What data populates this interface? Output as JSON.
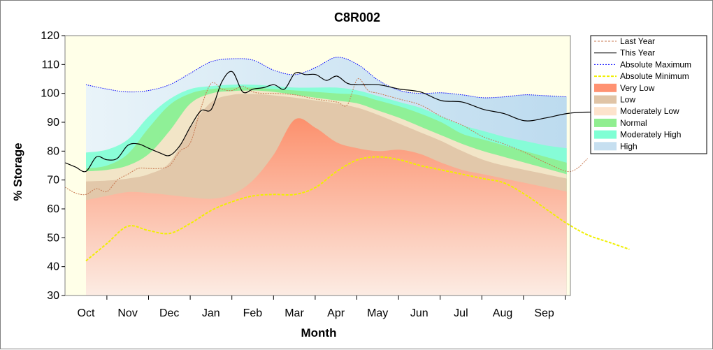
{
  "chart_data": {
    "type": "area",
    "title": "C8R002",
    "xlabel": "Month",
    "ylabel": "% Storage",
    "ylim": [
      30,
      120
    ],
    "yticks": [
      30,
      40,
      50,
      60,
      70,
      80,
      90,
      100,
      110,
      120
    ],
    "months": [
      "Oct",
      "Nov",
      "Dec",
      "Jan",
      "Feb",
      "Mar",
      "Apr",
      "May",
      "Jun",
      "Jul",
      "Aug",
      "Sep"
    ],
    "legend_position": "right",
    "bands": [
      {
        "name": "High",
        "color": "#c6dff0",
        "lower_series": "Moderately High",
        "upper": [
          [
            1,
            103
          ],
          [
            2,
            101.5
          ],
          [
            3,
            100.5
          ],
          [
            4,
            101
          ],
          [
            5,
            103
          ],
          [
            6,
            107
          ],
          [
            7,
            111
          ],
          [
            8,
            112
          ],
          [
            9,
            111.5
          ],
          [
            10,
            108
          ],
          [
            11,
            106.5
          ],
          [
            12,
            109
          ],
          [
            13,
            112.5
          ],
          [
            14,
            110
          ],
          [
            15,
            104.5
          ],
          [
            16,
            101
          ],
          [
            17,
            100
          ],
          [
            18,
            100.2
          ],
          [
            19,
            99.5
          ],
          [
            20,
            98.5
          ],
          [
            21,
            98.8
          ],
          [
            22,
            99.5
          ],
          [
            23,
            99.2
          ],
          [
            24,
            98.8
          ]
        ]
      },
      {
        "name": "Moderately High",
        "color": "#7fffd4",
        "points": [
          [
            1,
            79.5
          ],
          [
            2,
            80.5
          ],
          [
            3,
            84
          ],
          [
            4,
            92
          ],
          [
            5,
            98
          ],
          [
            6,
            101.5
          ],
          [
            7,
            102.5
          ],
          [
            8,
            103
          ],
          [
            9,
            103
          ],
          [
            10,
            102.5
          ],
          [
            11,
            102
          ],
          [
            12,
            102
          ],
          [
            13,
            102
          ],
          [
            14,
            101
          ],
          [
            15,
            99
          ],
          [
            16,
            97
          ],
          [
            17,
            95
          ],
          [
            18,
            92
          ],
          [
            19,
            89
          ],
          [
            20,
            87
          ],
          [
            21,
            85
          ],
          [
            22,
            83.5
          ],
          [
            23,
            82
          ],
          [
            24,
            81
          ]
        ]
      },
      {
        "name": "Normal",
        "color": "#90ee90",
        "points": [
          [
            1,
            74
          ],
          [
            2,
            75
          ],
          [
            3,
            79
          ],
          [
            4,
            88
          ],
          [
            5,
            96
          ],
          [
            6,
            100
          ],
          [
            7,
            101.5
          ],
          [
            8,
            102
          ],
          [
            9,
            102
          ],
          [
            10,
            101.5
          ],
          [
            11,
            101
          ],
          [
            12,
            100.5
          ],
          [
            13,
            100
          ],
          [
            14,
            99.5
          ],
          [
            15,
            97.5
          ],
          [
            16,
            95.5
          ],
          [
            17,
            93
          ],
          [
            18,
            90
          ],
          [
            19,
            86
          ],
          [
            20,
            84
          ],
          [
            21,
            82
          ],
          [
            22,
            80
          ],
          [
            23,
            78
          ],
          [
            24,
            76
          ]
        ]
      },
      {
        "name": "Moderately Low",
        "color": "#fde3cc",
        "points": [
          [
            1,
            73
          ],
          [
            2,
            73.5
          ],
          [
            3,
            75
          ],
          [
            4,
            79
          ],
          [
            5,
            87
          ],
          [
            6,
            96.5
          ],
          [
            7,
            100
          ],
          [
            8,
            100.8
          ],
          [
            9,
            101
          ],
          [
            10,
            100.5
          ],
          [
            11,
            99.5
          ],
          [
            12,
            98.5
          ],
          [
            13,
            97.5
          ],
          [
            14,
            96.5
          ],
          [
            15,
            94
          ],
          [
            16,
            91.5
          ],
          [
            17,
            88.5
          ],
          [
            18,
            85.5
          ],
          [
            19,
            82.5
          ],
          [
            20,
            80
          ],
          [
            21,
            78
          ],
          [
            22,
            76
          ],
          [
            23,
            74
          ],
          [
            24,
            72
          ]
        ]
      },
      {
        "name": "Low",
        "color": "#e0c4a6",
        "points": [
          [
            1,
            69.5
          ],
          [
            2,
            69.8
          ],
          [
            3,
            70.5
          ],
          [
            4,
            72
          ],
          [
            5,
            76
          ],
          [
            6,
            88
          ],
          [
            7,
            97
          ],
          [
            8,
            99.5
          ],
          [
            9,
            99.8
          ],
          [
            10,
            99.3
          ],
          [
            11,
            98.5
          ],
          [
            12,
            97.5
          ],
          [
            13,
            96.5
          ],
          [
            14,
            95
          ],
          [
            15,
            92.5
          ],
          [
            16,
            89.5
          ],
          [
            17,
            86.5
          ],
          [
            18,
            83.5
          ],
          [
            19,
            80
          ],
          [
            20,
            77
          ],
          [
            21,
            75
          ],
          [
            22,
            73.5
          ],
          [
            23,
            72
          ],
          [
            24,
            70.5
          ]
        ]
      },
      {
        "name": "Very Low",
        "color": "#ff9272",
        "points": [
          [
            1,
            63
          ],
          [
            2,
            64.5
          ],
          [
            3,
            65.8
          ],
          [
            4,
            65.5
          ],
          [
            5,
            64.8
          ],
          [
            6,
            64
          ],
          [
            7,
            63.5
          ],
          [
            8,
            65
          ],
          [
            9,
            70
          ],
          [
            10,
            79
          ],
          [
            11,
            91
          ],
          [
            12,
            88
          ],
          [
            13,
            83
          ],
          [
            14,
            81
          ],
          [
            15,
            80
          ],
          [
            16,
            80.5
          ],
          [
            17,
            79
          ],
          [
            18,
            76
          ],
          [
            19,
            73.5
          ],
          [
            20,
            72
          ],
          [
            21,
            70.5
          ],
          [
            22,
            69
          ],
          [
            23,
            67.5
          ],
          [
            24,
            66
          ]
        ]
      }
    ],
    "series": [
      {
        "name": "Last Year",
        "color": "#c87850",
        "style": "dotted",
        "points": [
          [
            0,
            67.5
          ],
          [
            0.5,
            65.5
          ],
          [
            1,
            65
          ],
          [
            1.5,
            67
          ],
          [
            2,
            66
          ],
          [
            2.5,
            70
          ],
          [
            3,
            72
          ],
          [
            3.5,
            74
          ],
          [
            4,
            74
          ],
          [
            4.5,
            74
          ],
          [
            5,
            75
          ],
          [
            5.5,
            80
          ],
          [
            6,
            83
          ],
          [
            6.5,
            95
          ],
          [
            7,
            103.5
          ],
          [
            7.5,
            101.5
          ],
          [
            8,
            101
          ],
          [
            8.5,
            102.5
          ],
          [
            9,
            100.5
          ],
          [
            9.5,
            100
          ],
          [
            10,
            100
          ],
          [
            11,
            99.5
          ],
          [
            12,
            98
          ],
          [
            13,
            97
          ],
          [
            13.5,
            96
          ],
          [
            14,
            105
          ],
          [
            14.5,
            101
          ],
          [
            15,
            100
          ],
          [
            16,
            98
          ],
          [
            17,
            96
          ],
          [
            18,
            92
          ],
          [
            19,
            89
          ],
          [
            20,
            85
          ],
          [
            21,
            82.5
          ],
          [
            22,
            79.5
          ],
          [
            23,
            76
          ],
          [
            24,
            73
          ],
          [
            24.5,
            74
          ],
          [
            25,
            77.5
          ]
        ]
      },
      {
        "name": "This Year",
        "color": "#000000",
        "style": "solid",
        "points": [
          [
            0,
            76
          ],
          [
            0.5,
            74.5
          ],
          [
            1,
            73
          ],
          [
            1.5,
            78
          ],
          [
            2,
            77
          ],
          [
            2.5,
            77.5
          ],
          [
            3,
            82
          ],
          [
            3.5,
            82.5
          ],
          [
            4,
            81
          ],
          [
            4.5,
            79.5
          ],
          [
            5,
            78.5
          ],
          [
            5.5,
            82
          ],
          [
            6,
            88.5
          ],
          [
            6.5,
            94
          ],
          [
            7,
            94.5
          ],
          [
            7.5,
            104
          ],
          [
            8,
            107.5
          ],
          [
            8.5,
            100.5
          ],
          [
            9,
            101.5
          ],
          [
            9.5,
            102
          ],
          [
            10,
            103
          ],
          [
            10.5,
            101.5
          ],
          [
            11,
            107
          ],
          [
            11.5,
            106.5
          ],
          [
            12,
            106.5
          ],
          [
            12.5,
            104.5
          ],
          [
            13,
            106
          ],
          [
            13.5,
            103.5
          ],
          [
            14,
            103
          ],
          [
            15,
            103
          ],
          [
            16,
            101.5
          ],
          [
            17,
            100.5
          ],
          [
            18,
            97.5
          ],
          [
            19,
            97
          ],
          [
            20,
            94.5
          ],
          [
            21,
            93
          ],
          [
            22,
            90.5
          ],
          [
            23,
            91.5
          ],
          [
            24,
            93
          ],
          [
            25,
            93.5
          ],
          [
            26,
            93
          ],
          [
            27,
            88
          ]
        ]
      },
      {
        "name": "Absolute Maximum",
        "color": "#0000ff",
        "style": "dotted",
        "points": []
      },
      {
        "name": "Absolute Minimum",
        "color": "#f0f000",
        "style": "dashed",
        "points": [
          [
            1,
            42
          ],
          [
            2,
            48
          ],
          [
            3,
            54
          ],
          [
            4,
            52.5
          ],
          [
            5,
            51.5
          ],
          [
            6,
            55
          ],
          [
            7,
            59.5
          ],
          [
            8,
            62.5
          ],
          [
            9,
            64.5
          ],
          [
            10,
            65
          ],
          [
            11,
            65
          ],
          [
            12,
            67.5
          ],
          [
            13,
            73
          ],
          [
            14,
            77
          ],
          [
            15,
            78
          ],
          [
            16,
            77
          ],
          [
            17,
            75
          ],
          [
            18,
            73.5
          ],
          [
            19,
            72
          ],
          [
            20,
            70.5
          ],
          [
            21,
            69
          ],
          [
            22,
            65
          ],
          [
            23,
            60
          ],
          [
            24,
            55
          ],
          [
            25,
            51
          ],
          [
            26,
            48.5
          ],
          [
            27,
            46
          ]
        ]
      }
    ],
    "legend": [
      {
        "label": "Last Year",
        "kind": "line",
        "color": "#c87850",
        "dash": "3,2"
      },
      {
        "label": "This Year",
        "kind": "line",
        "color": "#000000",
        "dash": ""
      },
      {
        "label": "Absolute Maximum",
        "kind": "line",
        "color": "#0000ff",
        "dash": "2,2"
      },
      {
        "label": "Absolute Minimum",
        "kind": "line",
        "color": "#f0f000",
        "dash": "4,2"
      },
      {
        "label": "Very Low",
        "kind": "box",
        "color": "#ff9272"
      },
      {
        "label": "Low",
        "kind": "box",
        "color": "#e0c4a6"
      },
      {
        "label": "Moderately Low",
        "kind": "box",
        "color": "#fde3cc"
      },
      {
        "label": "Normal",
        "kind": "box",
        "color": "#90ee90"
      },
      {
        "label": "Moderately High",
        "kind": "box",
        "color": "#7fffd4"
      },
      {
        "label": "High",
        "kind": "box",
        "color": "#c6dff0"
      }
    ],
    "plot_background": "#ffffe8"
  }
}
